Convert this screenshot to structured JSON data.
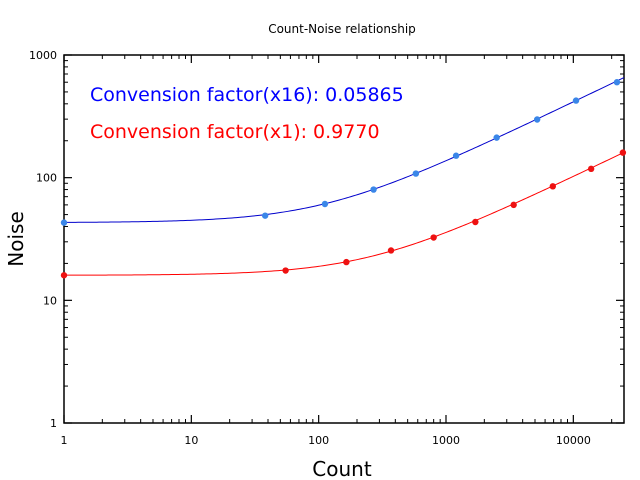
{
  "chart_data": {
    "type": "scatter",
    "title": "Count-Noise relationship",
    "xlabel": "Count",
    "ylabel": "Noise",
    "xscale": "log",
    "yscale": "log",
    "xlim": [
      1,
      25000
    ],
    "ylim": [
      1,
      1000
    ],
    "x_ticks": [
      {
        "value": 1,
        "label": "1"
      },
      {
        "value": 10,
        "label": "10"
      },
      {
        "value": 100,
        "label": "100"
      },
      {
        "value": 1000,
        "label": "1000"
      },
      {
        "value": 10000,
        "label": "10000"
      }
    ],
    "y_ticks": [
      {
        "value": 1,
        "label": "1"
      },
      {
        "value": 10,
        "label": "10"
      },
      {
        "value": 100,
        "label": "100"
      },
      {
        "value": 1000,
        "label": "1000"
      }
    ],
    "grid": false,
    "annotations": [
      {
        "text": "Convension factor(x16): 0.05865",
        "color": "#0000ff"
      },
      {
        "text": "Convension factor(x1): 0.9770",
        "color": "#ff0000"
      }
    ],
    "series": [
      {
        "color": "#0000cc",
        "marker_color": "#3a86e8",
        "fit": {
          "base_noise": 43,
          "factor": 0.05865
        },
        "points": [
          {
            "x": 1,
            "y": 43
          },
          {
            "x": 38,
            "y": 49
          },
          {
            "x": 112,
            "y": 61
          },
          {
            "x": 270,
            "y": 80
          },
          {
            "x": 580,
            "y": 108
          },
          {
            "x": 1200,
            "y": 151
          },
          {
            "x": 2500,
            "y": 212
          },
          {
            "x": 5200,
            "y": 298
          },
          {
            "x": 10500,
            "y": 425
          },
          {
            "x": 22000,
            "y": 600
          }
        ]
      },
      {
        "color": "#ff0000",
        "marker_color": "#ee1111",
        "fit": {
          "base_noise": 16,
          "factor": 0.977
        },
        "points": [
          {
            "x": 1,
            "y": 16
          },
          {
            "x": 55,
            "y": 17.5
          },
          {
            "x": 165,
            "y": 20.5
          },
          {
            "x": 370,
            "y": 25.5
          },
          {
            "x": 800,
            "y": 32.5
          },
          {
            "x": 1700,
            "y": 43.5
          },
          {
            "x": 3400,
            "y": 60
          },
          {
            "x": 6900,
            "y": 85
          },
          {
            "x": 13800,
            "y": 118
          },
          {
            "x": 24500,
            "y": 160
          }
        ]
      }
    ]
  }
}
